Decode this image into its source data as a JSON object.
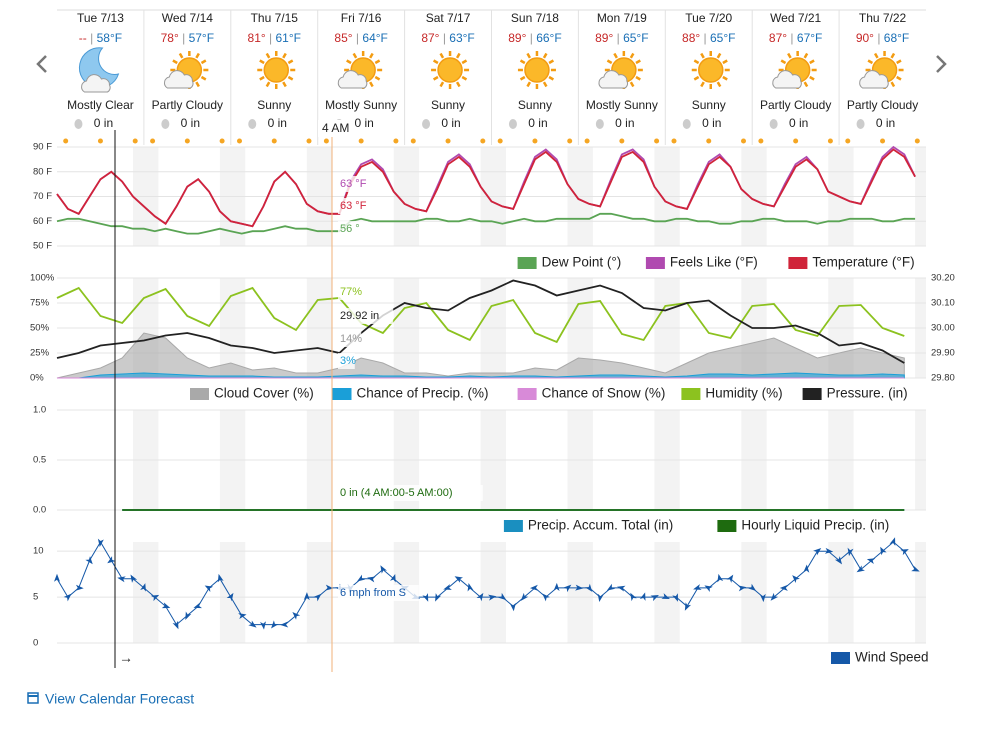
{
  "days": [
    {
      "date": "Tue 7/13",
      "hi": "--",
      "lo": "58°F",
      "condition": "Mostly Clear",
      "precip": "0 in"
    },
    {
      "date": "Wed 7/14",
      "hi": "78°",
      "lo": "57°F",
      "condition": "Partly Cloudy",
      "precip": "0 in"
    },
    {
      "date": "Thu 7/15",
      "hi": "81°",
      "lo": "61°F",
      "condition": "Sunny",
      "precip": "0 in"
    },
    {
      "date": "Fri 7/16",
      "hi": "85°",
      "lo": "64°F",
      "condition": "Mostly Sunny",
      "precip": "0 in"
    },
    {
      "date": "Sat 7/17",
      "hi": "87°",
      "lo": "63°F",
      "condition": "Sunny",
      "precip": "0 in"
    },
    {
      "date": "Sun 7/18",
      "hi": "89°",
      "lo": "66°F",
      "condition": "Sunny",
      "precip": "0 in"
    },
    {
      "date": "Mon 7/19",
      "hi": "89°",
      "lo": "65°F",
      "condition": "Mostly Sunny",
      "precip": "0 in"
    },
    {
      "date": "Tue 7/20",
      "hi": "88°",
      "lo": "65°F",
      "condition": "Sunny",
      "precip": "0 in"
    },
    {
      "date": "Wed 7/21",
      "hi": "87°",
      "lo": "67°F",
      "condition": "Partly Cloudy",
      "precip": "0 in"
    },
    {
      "date": "Thu 7/22",
      "hi": "90°",
      "lo": "68°F",
      "condition": "Partly Cloudy",
      "precip": "0 in"
    }
  ],
  "separator": "|",
  "cursor_label": "4 AM",
  "pan_hint": "→",
  "footer_link": "View Calendar Forecast",
  "chart_data": [
    {
      "type": "line",
      "ylim": [
        50,
        90
      ],
      "yticks": [
        {
          "value": 50,
          "label": "50 F"
        },
        {
          "value": 60,
          "label": "60 F"
        },
        {
          "value": 70,
          "label": "70 F"
        },
        {
          "value": 80,
          "label": "80 F"
        },
        {
          "value": 90,
          "label": "90 F"
        }
      ],
      "annotations": [
        "63 °F",
        "63 °F",
        "56 °"
      ],
      "series": [
        {
          "name": "Dew Point (°)",
          "color": "#5aa454",
          "values": [
            60,
            61,
            61,
            60,
            59,
            58,
            58,
            57,
            57,
            56,
            57,
            56,
            55,
            55,
            56,
            57,
            56,
            55,
            56,
            56,
            57,
            58,
            57,
            57,
            56,
            56,
            56,
            60,
            61,
            60,
            60,
            60,
            60,
            60,
            61,
            61,
            60,
            60,
            61,
            60,
            60,
            59,
            60,
            61,
            60,
            60,
            61,
            61,
            61,
            61,
            63,
            63,
            62,
            61,
            61,
            60,
            60,
            61,
            61,
            60,
            60,
            59,
            59,
            60,
            60,
            61,
            61,
            60,
            60,
            60,
            59,
            60,
            60,
            61,
            61,
            61,
            60,
            60,
            61,
            61
          ]
        },
        {
          "name": "Feels Like (°F)",
          "color": "#b04ab0",
          "values": [
            71,
            65,
            63,
            70,
            77,
            80,
            76,
            70,
            66,
            62,
            59,
            66,
            74,
            77,
            72,
            64,
            60,
            59,
            58,
            66,
            76,
            80,
            75,
            67,
            64,
            63,
            63,
            76,
            83,
            85,
            81,
            72,
            67,
            65,
            64,
            74,
            84,
            87,
            83,
            74,
            68,
            66,
            65,
            76,
            86,
            89,
            85,
            75,
            69,
            67,
            66,
            77,
            87,
            89,
            85,
            74,
            68,
            66,
            65,
            75,
            84,
            87,
            82,
            73,
            69,
            67,
            66,
            75,
            83,
            86,
            81,
            72,
            70,
            68,
            67,
            77,
            86,
            90,
            87,
            78
          ]
        },
        {
          "name": "Temperature (°F)",
          "color": "#d0243a",
          "values": [
            71,
            65,
            63,
            70,
            77,
            80,
            76,
            70,
            66,
            62,
            59,
            66,
            74,
            77,
            72,
            64,
            60,
            59,
            58,
            66,
            76,
            80,
            75,
            67,
            64,
            63,
            63,
            75,
            82,
            84,
            80,
            72,
            67,
            65,
            64,
            73,
            83,
            86,
            82,
            74,
            68,
            66,
            65,
            75,
            85,
            88,
            84,
            75,
            69,
            67,
            66,
            76,
            86,
            88,
            84,
            74,
            68,
            66,
            65,
            74,
            83,
            86,
            82,
            73,
            69,
            67,
            66,
            74,
            82,
            85,
            81,
            72,
            70,
            68,
            67,
            76,
            85,
            89,
            86,
            78
          ]
        }
      ]
    },
    {
      "type": "line",
      "ylim": [
        0,
        100
      ],
      "yticks": [
        {
          "value": 0,
          "label": "0%"
        },
        {
          "value": 25,
          "label": "25%"
        },
        {
          "value": 50,
          "label": "50%"
        },
        {
          "value": 75,
          "label": "75%"
        },
        {
          "value": 100,
          "label": "100%"
        }
      ],
      "y2lim": [
        29.8,
        30.2
      ],
      "y2ticks": [
        {
          "value": 29.8,
          "label": "29.80"
        },
        {
          "value": 29.9,
          "label": "29.90"
        },
        {
          "value": 30.0,
          "label": "30.00"
        },
        {
          "value": 30.1,
          "label": "30.10"
        },
        {
          "value": 30.2,
          "label": "30.20"
        }
      ],
      "annotations": [
        "77%",
        "29.92 in",
        "14%",
        "3%"
      ],
      "series": [
        {
          "name": "Cloud Cover (%)",
          "color": "#a9a9a9",
          "area": true,
          "values": [
            0,
            5,
            10,
            20,
            45,
            40,
            20,
            10,
            15,
            8,
            10,
            5,
            5,
            10,
            20,
            15,
            5,
            5,
            2,
            5,
            5,
            5,
            10,
            8,
            20,
            18,
            15,
            10,
            5,
            15,
            25,
            30,
            35,
            40,
            30,
            20,
            25,
            30,
            25,
            20
          ]
        },
        {
          "name": "Chance of Precip. (%)",
          "color": "#1a9fd8",
          "area": true,
          "values": [
            0,
            0,
            3,
            4,
            5,
            4,
            3,
            2,
            2,
            2,
            1,
            1,
            1,
            2,
            3,
            2,
            2,
            1,
            1,
            2,
            1,
            2,
            2,
            1,
            2,
            3,
            3,
            2,
            1,
            2,
            4,
            4,
            3,
            4,
            5,
            4,
            3,
            3,
            4,
            3
          ]
        },
        {
          "name": "Chance of Snow (%)",
          "color": "#d88ad8",
          "area": true,
          "values": [
            0,
            0,
            0,
            0,
            0,
            0,
            0,
            0,
            0,
            0,
            0,
            0,
            0,
            0,
            0,
            0,
            0,
            0,
            0,
            0,
            0,
            0,
            0,
            0,
            0,
            0,
            0,
            0,
            0,
            0,
            0,
            0,
            0,
            0,
            0,
            0,
            0,
            0,
            0,
            0
          ]
        },
        {
          "name": "Humidity (%)",
          "color": "#8cc21f",
          "values": [
            80,
            90,
            62,
            55,
            80,
            89,
            62,
            52,
            82,
            90,
            60,
            48,
            78,
            80,
            55,
            45,
            70,
            75,
            48,
            38,
            72,
            78,
            45,
            36,
            74,
            77,
            44,
            38,
            72,
            75,
            45,
            40,
            72,
            74,
            48,
            42,
            72,
            73,
            50,
            42
          ]
        },
        {
          "name": "Pressure. (in)",
          "color": "#222222",
          "axis": "y2",
          "values": [
            29.88,
            29.9,
            29.93,
            29.94,
            29.95,
            29.97,
            29.98,
            29.96,
            29.93,
            29.92,
            29.9,
            29.91,
            29.92,
            29.9,
            29.98,
            30.05,
            30.1,
            30.08,
            30.07,
            30.12,
            30.15,
            30.19,
            30.17,
            30.13,
            30.15,
            30.17,
            30.14,
            30.08,
            30.07,
            30.1,
            30.11,
            30.05,
            30.0,
            30.0,
            30.01,
            29.98,
            29.93,
            29.94,
            29.91,
            29.86
          ]
        }
      ]
    },
    {
      "type": "line",
      "ylim": [
        0,
        1
      ],
      "yticks": [
        {
          "value": 0,
          "label": "0.0"
        },
        {
          "value": 0.5,
          "label": "0.5"
        },
        {
          "value": 1,
          "label": "1.0"
        }
      ],
      "annotations": [
        "0 in (4 AM:00-5 AM:00)"
      ],
      "series": [
        {
          "name": "Precip. Accum. Total (in)",
          "color": "#1a8fc0",
          "values": [
            null,
            null,
            null,
            0,
            0,
            0,
            0,
            0,
            0,
            0,
            0,
            0,
            0,
            0,
            0,
            0,
            0,
            0,
            0,
            0,
            0,
            0,
            0,
            0,
            0,
            0,
            0,
            0,
            0,
            0,
            0,
            0,
            0,
            0,
            0,
            0,
            0,
            0,
            0,
            0
          ]
        },
        {
          "name": "Hourly Liquid Precip. (in)",
          "color": "#1e6b0f",
          "values": [
            null,
            null,
            null,
            0,
            0,
            0,
            0,
            0,
            0,
            0,
            0,
            0,
            0,
            0,
            0,
            0,
            0,
            0,
            0,
            0,
            0,
            0,
            0,
            0,
            0,
            0,
            0,
            0,
            0,
            0,
            0,
            0,
            0,
            0,
            0,
            0,
            0,
            0,
            0,
            0
          ]
        }
      ]
    },
    {
      "type": "line",
      "ylim": [
        0,
        11
      ],
      "yticks": [
        0,
        5,
        10
      ],
      "annotations": [
        "6 mph from S"
      ],
      "series": [
        {
          "name": "Wind Speed",
          "color": "#1558a8",
          "values": [
            7,
            5,
            6,
            9,
            11,
            9,
            7,
            7,
            6,
            5,
            4,
            2,
            3,
            4,
            6,
            7,
            5,
            3,
            2,
            2,
            2,
            2,
            3,
            5,
            5,
            6,
            6,
            6,
            7,
            7,
            8,
            7,
            6,
            5,
            5,
            5,
            6,
            7,
            6,
            5,
            5,
            5,
            4,
            5,
            6,
            5,
            6,
            6,
            6,
            6,
            5,
            6,
            6,
            5,
            5,
            5,
            5,
            5,
            4,
            6,
            6,
            7,
            7,
            6,
            6,
            5,
            5,
            6,
            7,
            8,
            10,
            10,
            9,
            10,
            8,
            9,
            10,
            11,
            10,
            8
          ]
        }
      ]
    }
  ]
}
